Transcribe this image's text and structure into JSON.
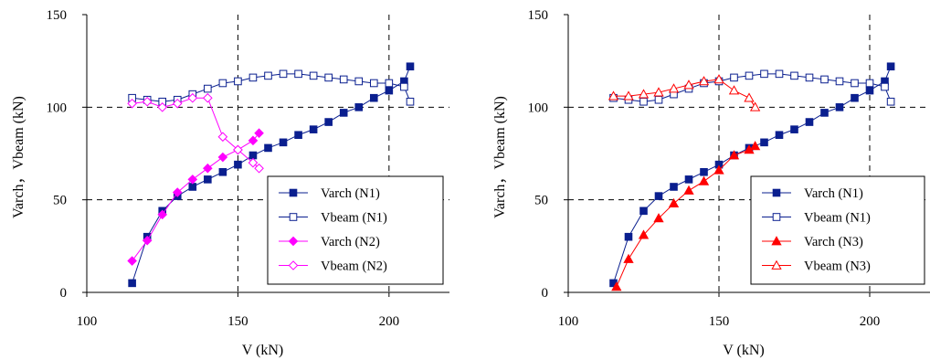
{
  "chart_data": [
    {
      "type": "line",
      "xlabel": "V (kN)",
      "ylabel": "Varch，Vbeam (kN)",
      "xlim": [
        100,
        220
      ],
      "ylim": [
        0,
        150
      ],
      "xticks": [
        "100",
        "150",
        "200"
      ],
      "yticks": [
        "0",
        "50",
        "100",
        "150"
      ],
      "grid": "dashed at x=150, x=200, y=50, y=100",
      "legend_position": "bottom-right",
      "series": [
        {
          "name": "Varch (N1)",
          "color": "#0a1f8f",
          "marker": "square-filled",
          "x": [
            115,
            120,
            125,
            130,
            135,
            140,
            145,
            150,
            155,
            160,
            165,
            170,
            175,
            180,
            185,
            190,
            195,
            200,
            205,
            207
          ],
          "y": [
            5,
            30,
            44,
            52,
            57,
            61,
            65,
            69,
            74,
            78,
            81,
            85,
            88,
            92,
            97,
            100,
            105,
            109,
            114,
            122
          ]
        },
        {
          "name": "Vbeam (N1)",
          "color": "#0a1f8f",
          "marker": "square-open",
          "x": [
            115,
            120,
            125,
            130,
            135,
            140,
            145,
            150,
            155,
            160,
            165,
            170,
            175,
            180,
            185,
            190,
            195,
            200,
            205,
            207
          ],
          "y": [
            105,
            104,
            103,
            104,
            107,
            110,
            113,
            114,
            116,
            117,
            118,
            118,
            117,
            116,
            115,
            114,
            113,
            113,
            111,
            103
          ]
        },
        {
          "name": "Varch (N2)",
          "color": "#ff00ff",
          "marker": "diamond-filled",
          "x": [
            115,
            120,
            125,
            130,
            135,
            140,
            145,
            150,
            155,
            157
          ],
          "y": [
            17,
            28,
            42,
            54,
            61,
            67,
            73,
            77,
            82,
            86
          ]
        },
        {
          "name": "Vbeam (N2)",
          "color": "#ff00ff",
          "marker": "diamond-open",
          "x": [
            115,
            120,
            125,
            130,
            135,
            140,
            145,
            150,
            155,
            157
          ],
          "y": [
            102,
            103,
            100,
            102,
            105,
            105,
            84,
            77,
            70,
            67
          ]
        }
      ]
    },
    {
      "type": "line",
      "xlabel": "V (kN)",
      "ylabel": "Varch，Vbeam (kN)",
      "xlim": [
        100,
        220
      ],
      "ylim": [
        0,
        150
      ],
      "xticks": [
        "100",
        "150",
        "200"
      ],
      "yticks": [
        "0",
        "50",
        "100",
        "150"
      ],
      "grid": "dashed at x=150, x=200, y=50, y=100",
      "legend_position": "bottom-right",
      "series": [
        {
          "name": "Varch (N1)",
          "color": "#0a1f8f",
          "marker": "square-filled",
          "x": [
            115,
            120,
            125,
            130,
            135,
            140,
            145,
            150,
            155,
            160,
            165,
            170,
            175,
            180,
            185,
            190,
            195,
            200,
            205,
            207
          ],
          "y": [
            5,
            30,
            44,
            52,
            57,
            61,
            65,
            69,
            74,
            78,
            81,
            85,
            88,
            92,
            97,
            100,
            105,
            109,
            114,
            122
          ]
        },
        {
          "name": "Vbeam (N1)",
          "color": "#0a1f8f",
          "marker": "square-open",
          "x": [
            115,
            120,
            125,
            130,
            135,
            140,
            145,
            150,
            155,
            160,
            165,
            170,
            175,
            180,
            185,
            190,
            195,
            200,
            205,
            207
          ],
          "y": [
            105,
            104,
            103,
            104,
            107,
            110,
            113,
            114,
            116,
            117,
            118,
            118,
            117,
            116,
            115,
            114,
            113,
            113,
            111,
            103
          ]
        },
        {
          "name": "Varch (N3)",
          "color": "#ff0000",
          "marker": "triangle-filled",
          "x": [
            116,
            120,
            125,
            130,
            135,
            140,
            145,
            150,
            155,
            160,
            162
          ],
          "y": [
            3,
            18,
            31,
            40,
            48,
            55,
            60,
            66,
            74,
            77,
            79
          ]
        },
        {
          "name": "Vbeam (N3)",
          "color": "#ff0000",
          "marker": "triangle-open",
          "x": [
            115,
            120,
            125,
            130,
            135,
            140,
            145,
            150,
            155,
            160,
            162
          ],
          "y": [
            106,
            106,
            107,
            108,
            110,
            112,
            114,
            115,
            109,
            105,
            100
          ]
        }
      ]
    }
  ]
}
